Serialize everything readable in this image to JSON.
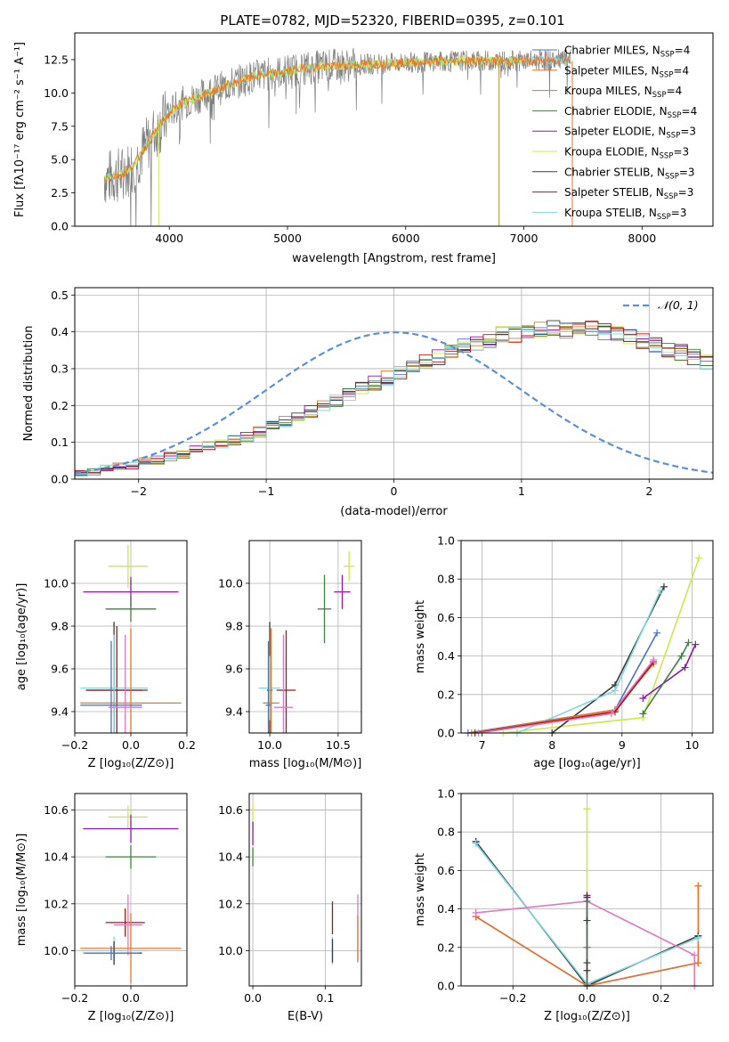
{
  "figure": {
    "title": "PLATE=0782, MJD=52320, FIBERID=0395, z=0.101"
  },
  "colors": {
    "Chabrier MILES": "#4f6fd0",
    "Salpeter MILES": "#e8742a",
    "Kroupa MILES": "#b08a2e",
    "Chabrier ELODIE": "#3f7f3f",
    "Salpeter ELODIE": "#8b1aa8",
    "Kroupa ELODIE": "#cde84a",
    "Chabrier STELIB": "#3a3a3a",
    "Salpeter STELIB": "#b01010",
    "Kroupa STELIB": "#7fd8e0",
    "noise": "#7f7f7f",
    "grid": "#b0b0b0",
    "normal": "#5b8fd6",
    "salpeter_mw": "#e377c2"
  },
  "chart_data": [
    {
      "id": "spectrum",
      "type": "line",
      "title": "PLATE=0782, MJD=52320, FIBERID=0395, z=0.101",
      "xlabel": "wavelength [Angstrom, rest frame]",
      "ylabel": "Flux [fλ10⁻¹⁷ erg cm⁻² s⁻¹ A⁻¹]",
      "xlim": [
        3200,
        8600
      ],
      "ylim": [
        0,
        14.5
      ],
      "xticks": [
        4000,
        5000,
        6000,
        7000,
        8000
      ],
      "yticks": [
        0.0,
        2.5,
        5.0,
        7.5,
        10.0,
        12.5
      ],
      "grid": false,
      "legend_position": "right",
      "legend": [
        {
          "label": "Chabrier MILES, N",
          "sub": "SSP",
          "suffix": "=4",
          "color_key": "Chabrier MILES"
        },
        {
          "label": "Salpeter MILES, N",
          "sub": "SSP",
          "suffix": "=4",
          "color_key": "Salpeter MILES"
        },
        {
          "label": "Kroupa MILES, N",
          "sub": "SSP",
          "suffix": "=4",
          "color_key": "Kroupa MILES"
        },
        {
          "label": "Chabrier ELODIE, N",
          "sub": "SSP",
          "suffix": "=4",
          "color_key": "Chabrier ELODIE"
        },
        {
          "label": "Salpeter ELODIE, N",
          "sub": "SSP",
          "suffix": "=3",
          "color_key": "Salpeter ELODIE"
        },
        {
          "label": "Kroupa ELODIE, N",
          "sub": "SSP",
          "suffix": "=3",
          "color_key": "Kroupa ELODIE"
        },
        {
          "label": "Chabrier STELIB, N",
          "sub": "SSP",
          "suffix": "=3",
          "color_key": "Chabrier STELIB"
        },
        {
          "label": "Salpeter STELIB, N",
          "sub": "SSP",
          "suffix": "=3",
          "color_key": "Salpeter STELIB"
        },
        {
          "label": "Kroupa STELIB, N",
          "sub": "SSP",
          "suffix": "=3",
          "color_key": "Kroupa STELIB"
        }
      ],
      "data_continuum": [
        [
          3450,
          3.6
        ],
        [
          3600,
          3.9
        ],
        [
          3700,
          4.6
        ],
        [
          3800,
          6.0
        ],
        [
          3900,
          7.3
        ],
        [
          4000,
          8.5
        ],
        [
          4100,
          9.2
        ],
        [
          4300,
          9.9
        ],
        [
          4500,
          10.6
        ],
        [
          4700,
          11.2
        ],
        [
          4900,
          11.5
        ],
        [
          5100,
          11.8
        ],
        [
          5300,
          12.0
        ],
        [
          5500,
          12.1
        ],
        [
          5800,
          12.2
        ],
        [
          6100,
          12.3
        ],
        [
          6400,
          12.4
        ],
        [
          6700,
          12.4
        ],
        [
          7000,
          12.4
        ],
        [
          7400,
          12.5
        ]
      ],
      "model_end": [
        7000,
        12.6
      ],
      "model_series": [
        "Kroupa STELIB",
        "Kroupa ELODIE",
        "Salpeter MILES"
      ]
    },
    {
      "id": "residuals",
      "type": "step",
      "xlabel": "(data-model)/error",
      "ylabel": "Normed distribution",
      "xlim": [
        -2.5,
        2.5
      ],
      "ylim": [
        0,
        0.52
      ],
      "xticks": [
        -2,
        -1,
        0,
        1,
        2
      ],
      "yticks": [
        0.0,
        0.1,
        0.2,
        0.3,
        0.4,
        0.5
      ],
      "grid": true,
      "legend_label": "𝒩(0, 1)",
      "bin_width": 0.1,
      "bin_start": -2.5,
      "base_heights": [
        0.018,
        0.023,
        0.028,
        0.034,
        0.04,
        0.047,
        0.053,
        0.062,
        0.07,
        0.078,
        0.088,
        0.098,
        0.108,
        0.118,
        0.13,
        0.144,
        0.158,
        0.172,
        0.185,
        0.2,
        0.213,
        0.228,
        0.243,
        0.26,
        0.273,
        0.29,
        0.305,
        0.318,
        0.333,
        0.346,
        0.358,
        0.37,
        0.38,
        0.39,
        0.395,
        0.4,
        0.403,
        0.41,
        0.407,
        0.4,
        0.41,
        0.402,
        0.395,
        0.388,
        0.378,
        0.368,
        0.355,
        0.343,
        0.33,
        0.318,
        0.303,
        0.29,
        0.27,
        0.258,
        0.243,
        0.228,
        0.212,
        0.198,
        0.183,
        0.17,
        0.155,
        0.142,
        0.128,
        0.115,
        0.103,
        0.092,
        0.082,
        0.073,
        0.064,
        0.057,
        0.049,
        0.042,
        0.036,
        0.031,
        0.026,
        0.022,
        0.019,
        0.016,
        0.014,
        0.013,
        0.012
      ],
      "series_order": [
        "Chabrier MILES",
        "Salpeter MILES",
        "Kroupa MILES",
        "Chabrier ELODIE",
        "Salpeter ELODIE",
        "Kroupa ELODIE",
        "Chabrier STELIB",
        "Salpeter STELIB",
        "Kroupa STELIB"
      ]
    },
    {
      "id": "age_vs_Z",
      "type": "errorbar",
      "xlabel": "Z [log₁₀(Z/Z⊙)]",
      "ylabel": "age  [log₁₀(age/yr)]",
      "xlim": [
        -0.2,
        0.2
      ],
      "ylim": [
        9.3,
        10.2
      ],
      "xticks": [
        -0.2,
        0.0,
        0.2
      ],
      "yticks": [
        9.4,
        9.6,
        9.8,
        10.0
      ],
      "xtick_labels": [
        "−0.2",
        "0.0",
        "0.2"
      ],
      "grid": true,
      "points": [
        {
          "color_key": "Kroupa ELODIE",
          "x": -0.01,
          "xe": 0.07,
          "y": 10.08,
          "ye": 0.1
        },
        {
          "color_key": "Salpeter ELODIE",
          "x": 0.0,
          "xe": 0.17,
          "y": 9.96,
          "ye": 0.07
        },
        {
          "color_key": "Chabrier ELODIE",
          "x": 0.0,
          "xe": 0.09,
          "y": 9.88,
          "ye": 0.06
        },
        {
          "color_key": "Chabrier STELIB",
          "x": -0.06,
          "xe": 0.1,
          "y": 9.5,
          "ye": 0.32
        },
        {
          "color_key": "Salpeter STELIB",
          "x": -0.05,
          "xe": 0.11,
          "y": 9.5,
          "ye": 0.3
        },
        {
          "color_key": "Kroupa STELIB",
          "x": -0.06,
          "xe": 0.12,
          "y": 9.51,
          "ye": 0.25
        },
        {
          "color_key": "Salpeter MILES",
          "x": 0.0,
          "xe": 0.18,
          "y": 9.44,
          "ye": 0.35
        },
        {
          "color_key": "Chabrier MILES",
          "x": -0.07,
          "xe": 0.11,
          "y": 9.43,
          "ye": 0.3
        },
        {
          "color_key": "salpeter_mw",
          "x": -0.02,
          "xe": 0.06,
          "y": 9.42,
          "ye": 0.34
        }
      ]
    },
    {
      "id": "age_vs_mass",
      "type": "errorbar",
      "xlabel": "mass [log₁₀(M/M⊙)]",
      "ylabel": "",
      "xlim": [
        9.85,
        10.67
      ],
      "ylim": [
        9.3,
        10.2
      ],
      "xticks": [
        10.0,
        10.5
      ],
      "yticks": [
        9.4,
        9.6,
        9.8,
        10.0
      ],
      "grid": true,
      "points": [
        {
          "color_key": "Kroupa ELODIE",
          "x": 10.58,
          "xe": 0.04,
          "y": 10.08,
          "ye": 0.07
        },
        {
          "color_key": "Salpeter ELODIE",
          "x": 10.53,
          "xe": 0.06,
          "y": 9.96,
          "ye": 0.08
        },
        {
          "color_key": "Chabrier ELODIE",
          "x": 10.4,
          "xe": 0.05,
          "y": 9.88,
          "ye": 0.16
        },
        {
          "color_key": "Chabrier STELIB",
          "x": 10.0,
          "xe": 0.02,
          "y": 9.5,
          "ye": 0.32
        },
        {
          "color_key": "Salpeter STELIB",
          "x": 10.12,
          "xe": 0.07,
          "y": 9.5,
          "ye": 0.28
        },
        {
          "color_key": "Kroupa STELIB",
          "x": 10.0,
          "xe": 0.08,
          "y": 9.51,
          "ye": 0.15
        },
        {
          "color_key": "Salpeter MILES",
          "x": 10.01,
          "xe": 0.06,
          "y": 9.44,
          "ye": 0.35
        },
        {
          "color_key": "Chabrier MILES",
          "x": 9.99,
          "xe": 0.02,
          "y": 9.43,
          "ye": 0.3
        },
        {
          "color_key": "salpeter_mw",
          "x": 10.1,
          "xe": 0.07,
          "y": 9.42,
          "ye": 0.34
        }
      ]
    },
    {
      "id": "massweight_vs_age",
      "type": "line",
      "xlabel": "age  [log₁₀(age/yr)]",
      "ylabel": "mass weight",
      "xlim": [
        6.7,
        10.3
      ],
      "ylim": [
        0,
        1.0
      ],
      "xticks": [
        7,
        8,
        9,
        10
      ],
      "yticks": [
        0.0,
        0.2,
        0.4,
        0.6,
        0.8,
        1.0
      ],
      "grid": true,
      "series": [
        {
          "color_key": "Kroupa ELODIE",
          "x": [
            7.3,
            9.3,
            10.1
          ],
          "y": [
            0.0,
            0.08,
            0.91
          ]
        },
        {
          "color_key": "Salpeter ELODIE",
          "x": [
            9.3,
            9.9,
            10.05
          ],
          "y": [
            0.18,
            0.34,
            0.46
          ]
        },
        {
          "color_key": "Chabrier ELODIE",
          "x": [
            9.3,
            9.85,
            9.95
          ],
          "y": [
            0.1,
            0.4,
            0.47
          ]
        },
        {
          "color_key": "Chabrier STELIB",
          "x": [
            8.0,
            8.9,
            9.6
          ],
          "y": [
            0.0,
            0.25,
            0.76
          ]
        },
        {
          "color_key": "Kroupa STELIB",
          "x": [
            7.5,
            8.9,
            9.55
          ],
          "y": [
            0.0,
            0.22,
            0.74
          ]
        },
        {
          "color_key": "Chabrier MILES",
          "x": [
            6.8,
            8.9,
            9.5
          ],
          "y": [
            0.0,
            0.12,
            0.52
          ]
        },
        {
          "color_key": "Salpeter MILES",
          "x": [
            6.85,
            8.9,
            9.45
          ],
          "y": [
            0.0,
            0.12,
            0.36
          ]
        },
        {
          "color_key": "Salpeter STELIB",
          "x": [
            6.9,
            8.9,
            9.45
          ],
          "y": [
            0.0,
            0.11,
            0.37
          ]
        },
        {
          "color_key": "salpeter_mw",
          "x": [
            6.95,
            8.85,
            9.45
          ],
          "y": [
            0.0,
            0.1,
            0.38
          ]
        }
      ]
    },
    {
      "id": "mass_vs_Z",
      "type": "errorbar",
      "xlabel": "Z [log₁₀(Z/Z⊙)]",
      "ylabel": "mass [log₁₀(M/M⊙)]",
      "xlim": [
        -0.2,
        0.2
      ],
      "ylim": [
        9.85,
        10.67
      ],
      "xticks": [
        -0.2,
        0.0
      ],
      "yticks": [
        10.0,
        10.2,
        10.4,
        10.6
      ],
      "xtick_labels": [
        "−0.2",
        "0.0"
      ],
      "grid": true,
      "points": [
        {
          "color_key": "Kroupa ELODIE",
          "x": -0.01,
          "xe": 0.07,
          "y": 10.57,
          "ye": 0.05
        },
        {
          "color_key": "Salpeter ELODIE",
          "x": 0.0,
          "xe": 0.17,
          "y": 10.52,
          "ye": 0.06
        },
        {
          "color_key": "Chabrier ELODIE",
          "x": 0.0,
          "xe": 0.09,
          "y": 10.4,
          "ye": 0.05
        },
        {
          "color_key": "Salpeter STELIB",
          "x": -0.02,
          "xe": 0.07,
          "y": 10.12,
          "ye": 0.06
        },
        {
          "color_key": "salpeter_mw",
          "x": -0.01,
          "xe": 0.05,
          "y": 10.11,
          "ye": 0.13
        },
        {
          "color_key": "Salpeter MILES",
          "x": 0.0,
          "xe": 0.18,
          "y": 10.01,
          "ye": 0.15
        },
        {
          "color_key": "Kroupa STELIB",
          "x": -0.06,
          "xe": 0.12,
          "y": 10.0,
          "ye": 0.06
        },
        {
          "color_key": "Chabrier STELIB",
          "x": -0.06,
          "xe": 0.1,
          "y": 9.99,
          "ye": 0.05
        },
        {
          "color_key": "Chabrier MILES",
          "x": -0.07,
          "xe": 0.1,
          "y": 9.99,
          "ye": 0.03
        }
      ]
    },
    {
      "id": "mass_vs_EBV",
      "type": "errorbar",
      "xlabel": "E(B-V)",
      "ylabel": "",
      "xlim": [
        -0.005,
        0.15
      ],
      "ylim": [
        9.85,
        10.67
      ],
      "xticks": [
        0.0,
        0.1
      ],
      "yticks": [
        10.0,
        10.2,
        10.4,
        10.6
      ],
      "grid": true,
      "points": [
        {
          "color_key": "Kroupa ELODIE",
          "x": 0.0,
          "xe": 0.0,
          "y": 10.57,
          "ye": 0.06
        },
        {
          "color_key": "Salpeter ELODIE",
          "x": 0.0,
          "xe": 0.0,
          "y": 10.5,
          "ye": 0.05
        },
        {
          "color_key": "Chabrier ELODIE",
          "x": 0.0,
          "xe": 0.0,
          "y": 10.4,
          "ye": 0.04
        },
        {
          "color_key": "Salpeter STELIB",
          "x": 0.11,
          "xe": 0.0,
          "y": 10.14,
          "ye": 0.07
        },
        {
          "color_key": "Kroupa STELIB",
          "x": 0.11,
          "xe": 0.0,
          "y": 10.0,
          "ye": 0.06
        },
        {
          "color_key": "Chabrier STELIB",
          "x": 0.11,
          "xe": 0.0,
          "y": 10.0,
          "ye": 0.05
        },
        {
          "color_key": "salpeter_mw",
          "x": 0.145,
          "xe": 0.0,
          "y": 10.1,
          "ye": 0.14
        },
        {
          "color_key": "Salpeter MILES",
          "x": 0.145,
          "xe": 0.0,
          "y": 10.05,
          "ye": 0.1
        }
      ]
    },
    {
      "id": "massweight_vs_Z",
      "type": "line",
      "xlabel": "Z [log₁₀(Z/Z⊙)]",
      "ylabel": "mass weight",
      "xlim": [
        -0.34,
        0.34
      ],
      "ylim": [
        0,
        1.0
      ],
      "xticks": [
        -0.2,
        0.0,
        0.2
      ],
      "xtick_labels": [
        "−0.2",
        "0.0",
        "0.2"
      ],
      "yticks": [
        0.0,
        0.2,
        0.4,
        0.6,
        0.8,
        1.0
      ],
      "grid": true,
      "series": [
        {
          "color_key": "Chabrier STELIB",
          "x": [
            -0.3,
            0.0,
            0.3
          ],
          "y": [
            0.75,
            0.0,
            0.26
          ]
        },
        {
          "color_key": "Kroupa STELIB",
          "x": [
            -0.3,
            0.0,
            0.3
          ],
          "y": [
            0.74,
            0.01,
            0.25
          ]
        },
        {
          "color_key": "Chabrier MILES",
          "x": [
            -0.3,
            0.0,
            0.3
          ],
          "y": [
            0.36,
            0.0,
            0.12
          ]
        },
        {
          "color_key": "Salpeter MILES",
          "x": [
            -0.3,
            0.0,
            0.3,
            0.3
          ],
          "y": [
            0.36,
            0.0,
            0.12,
            0.52
          ]
        },
        {
          "color_key": "salpeter_mw",
          "x": [
            -0.3,
            0.0,
            0.29,
            0.29
          ],
          "y": [
            0.38,
            0.44,
            0.16,
            0.0
          ]
        },
        {
          "color_key": "Kroupa ELODIE",
          "x": [
            0.0,
            0.0
          ],
          "y": [
            0.0,
            0.92
          ]
        },
        {
          "color_key": "Salpeter ELODIE",
          "x": [
            0.0,
            0.0
          ],
          "y": [
            0.0,
            0.47
          ]
        },
        {
          "color_key": "Chabrier ELODIE",
          "x": [
            0.0,
            0.0
          ],
          "y": [
            0.0,
            0.44
          ]
        }
      ],
      "markers": [
        {
          "color_key": "Kroupa ELODIE",
          "x": 0.0,
          "y": 0.92
        },
        {
          "color_key": "Salpeter ELODIE",
          "x": 0.0,
          "y": 0.47
        },
        {
          "color_key": "Chabrier STELIB",
          "x": 0.0,
          "y": 0.46
        },
        {
          "color_key": "Chabrier STELIB",
          "x": 0.0,
          "y": 0.34
        },
        {
          "color_key": "Chabrier ELODIE",
          "x": 0.0,
          "y": 0.2
        },
        {
          "color_key": "Chabrier STELIB",
          "x": 0.0,
          "y": 0.12
        },
        {
          "color_key": "Chabrier STELIB",
          "x": 0.0,
          "y": 0.08
        },
        {
          "color_key": "Chabrier STELIB",
          "x": -0.3,
          "y": 0.75
        },
        {
          "color_key": "Kroupa STELIB",
          "x": -0.3,
          "y": 0.74
        },
        {
          "color_key": "Salpeter MILES",
          "x": -0.3,
          "y": 0.36
        },
        {
          "color_key": "salpeter_mw",
          "x": -0.3,
          "y": 0.38
        },
        {
          "color_key": "Salpeter MILES",
          "x": 0.3,
          "y": 0.52
        },
        {
          "color_key": "Chabrier STELIB",
          "x": 0.3,
          "y": 0.26
        },
        {
          "color_key": "Kroupa STELIB",
          "x": 0.3,
          "y": 0.25
        },
        {
          "color_key": "Salpeter MILES",
          "x": 0.3,
          "y": 0.12
        }
      ]
    }
  ]
}
